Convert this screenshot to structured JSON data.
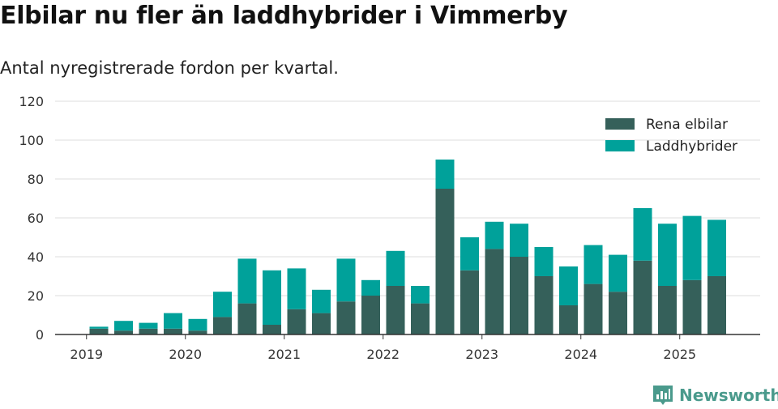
{
  "header": {
    "title": "Elbilar nu fler än laddhybrider i Vimmerby",
    "subtitle": "Antal nyregistrerade fordon per kvartal."
  },
  "brand": {
    "name": "Newsworthy",
    "color": "#4a9a8c"
  },
  "chart_data": {
    "type": "bar",
    "stacked": true,
    "title": "Elbilar nu fler än laddhybrider i Vimmerby",
    "subtitle": "Antal nyregistrerade fordon per kvartal.",
    "xlabel": "",
    "ylabel": "",
    "ylim": [
      0,
      120
    ],
    "yticks": [
      0,
      20,
      40,
      60,
      80,
      100,
      120
    ],
    "grid": true,
    "legend_position": "top-right",
    "x_tick_labels": [
      {
        "label": "2019",
        "index": -0.5
      },
      {
        "label": "2020",
        "index": 3.5
      },
      {
        "label": "2021",
        "index": 7.5
      },
      {
        "label": "2022",
        "index": 11.5
      },
      {
        "label": "2023",
        "index": 15.5
      },
      {
        "label": "2024",
        "index": 19.5
      },
      {
        "label": "2025",
        "index": 23.5
      }
    ],
    "categories": [
      "2019 Q2",
      "2019 Q3",
      "2019 Q4",
      "2020 Q1",
      "2020 Q2",
      "2020 Q3",
      "2020 Q4",
      "2021 Q1",
      "2021 Q2",
      "2021 Q3",
      "2021 Q4",
      "2022 Q1",
      "2022 Q2",
      "2022 Q3",
      "2022 Q4",
      "2023 Q1",
      "2023 Q2",
      "2023 Q3",
      "2023 Q4",
      "2024 Q1",
      "2024 Q2",
      "2024 Q3",
      "2024 Q4",
      "2025 Q1",
      "2025 Q2",
      "2025 Q3"
    ],
    "series": [
      {
        "name": "Rena elbilar",
        "color": "#35605a",
        "values": [
          3,
          2,
          3,
          3,
          2,
          9,
          16,
          5,
          13,
          11,
          17,
          20,
          25,
          16,
          75,
          33,
          44,
          40,
          30,
          15,
          26,
          22,
          38,
          25,
          28,
          30
        ]
      },
      {
        "name": "Laddhybrider",
        "color": "#00a19a",
        "values": [
          1,
          5,
          3,
          8,
          6,
          13,
          23,
          28,
          21,
          12,
          22,
          8,
          18,
          9,
          15,
          17,
          14,
          17,
          15,
          20,
          20,
          19,
          27,
          32,
          33,
          29
        ]
      }
    ]
  }
}
